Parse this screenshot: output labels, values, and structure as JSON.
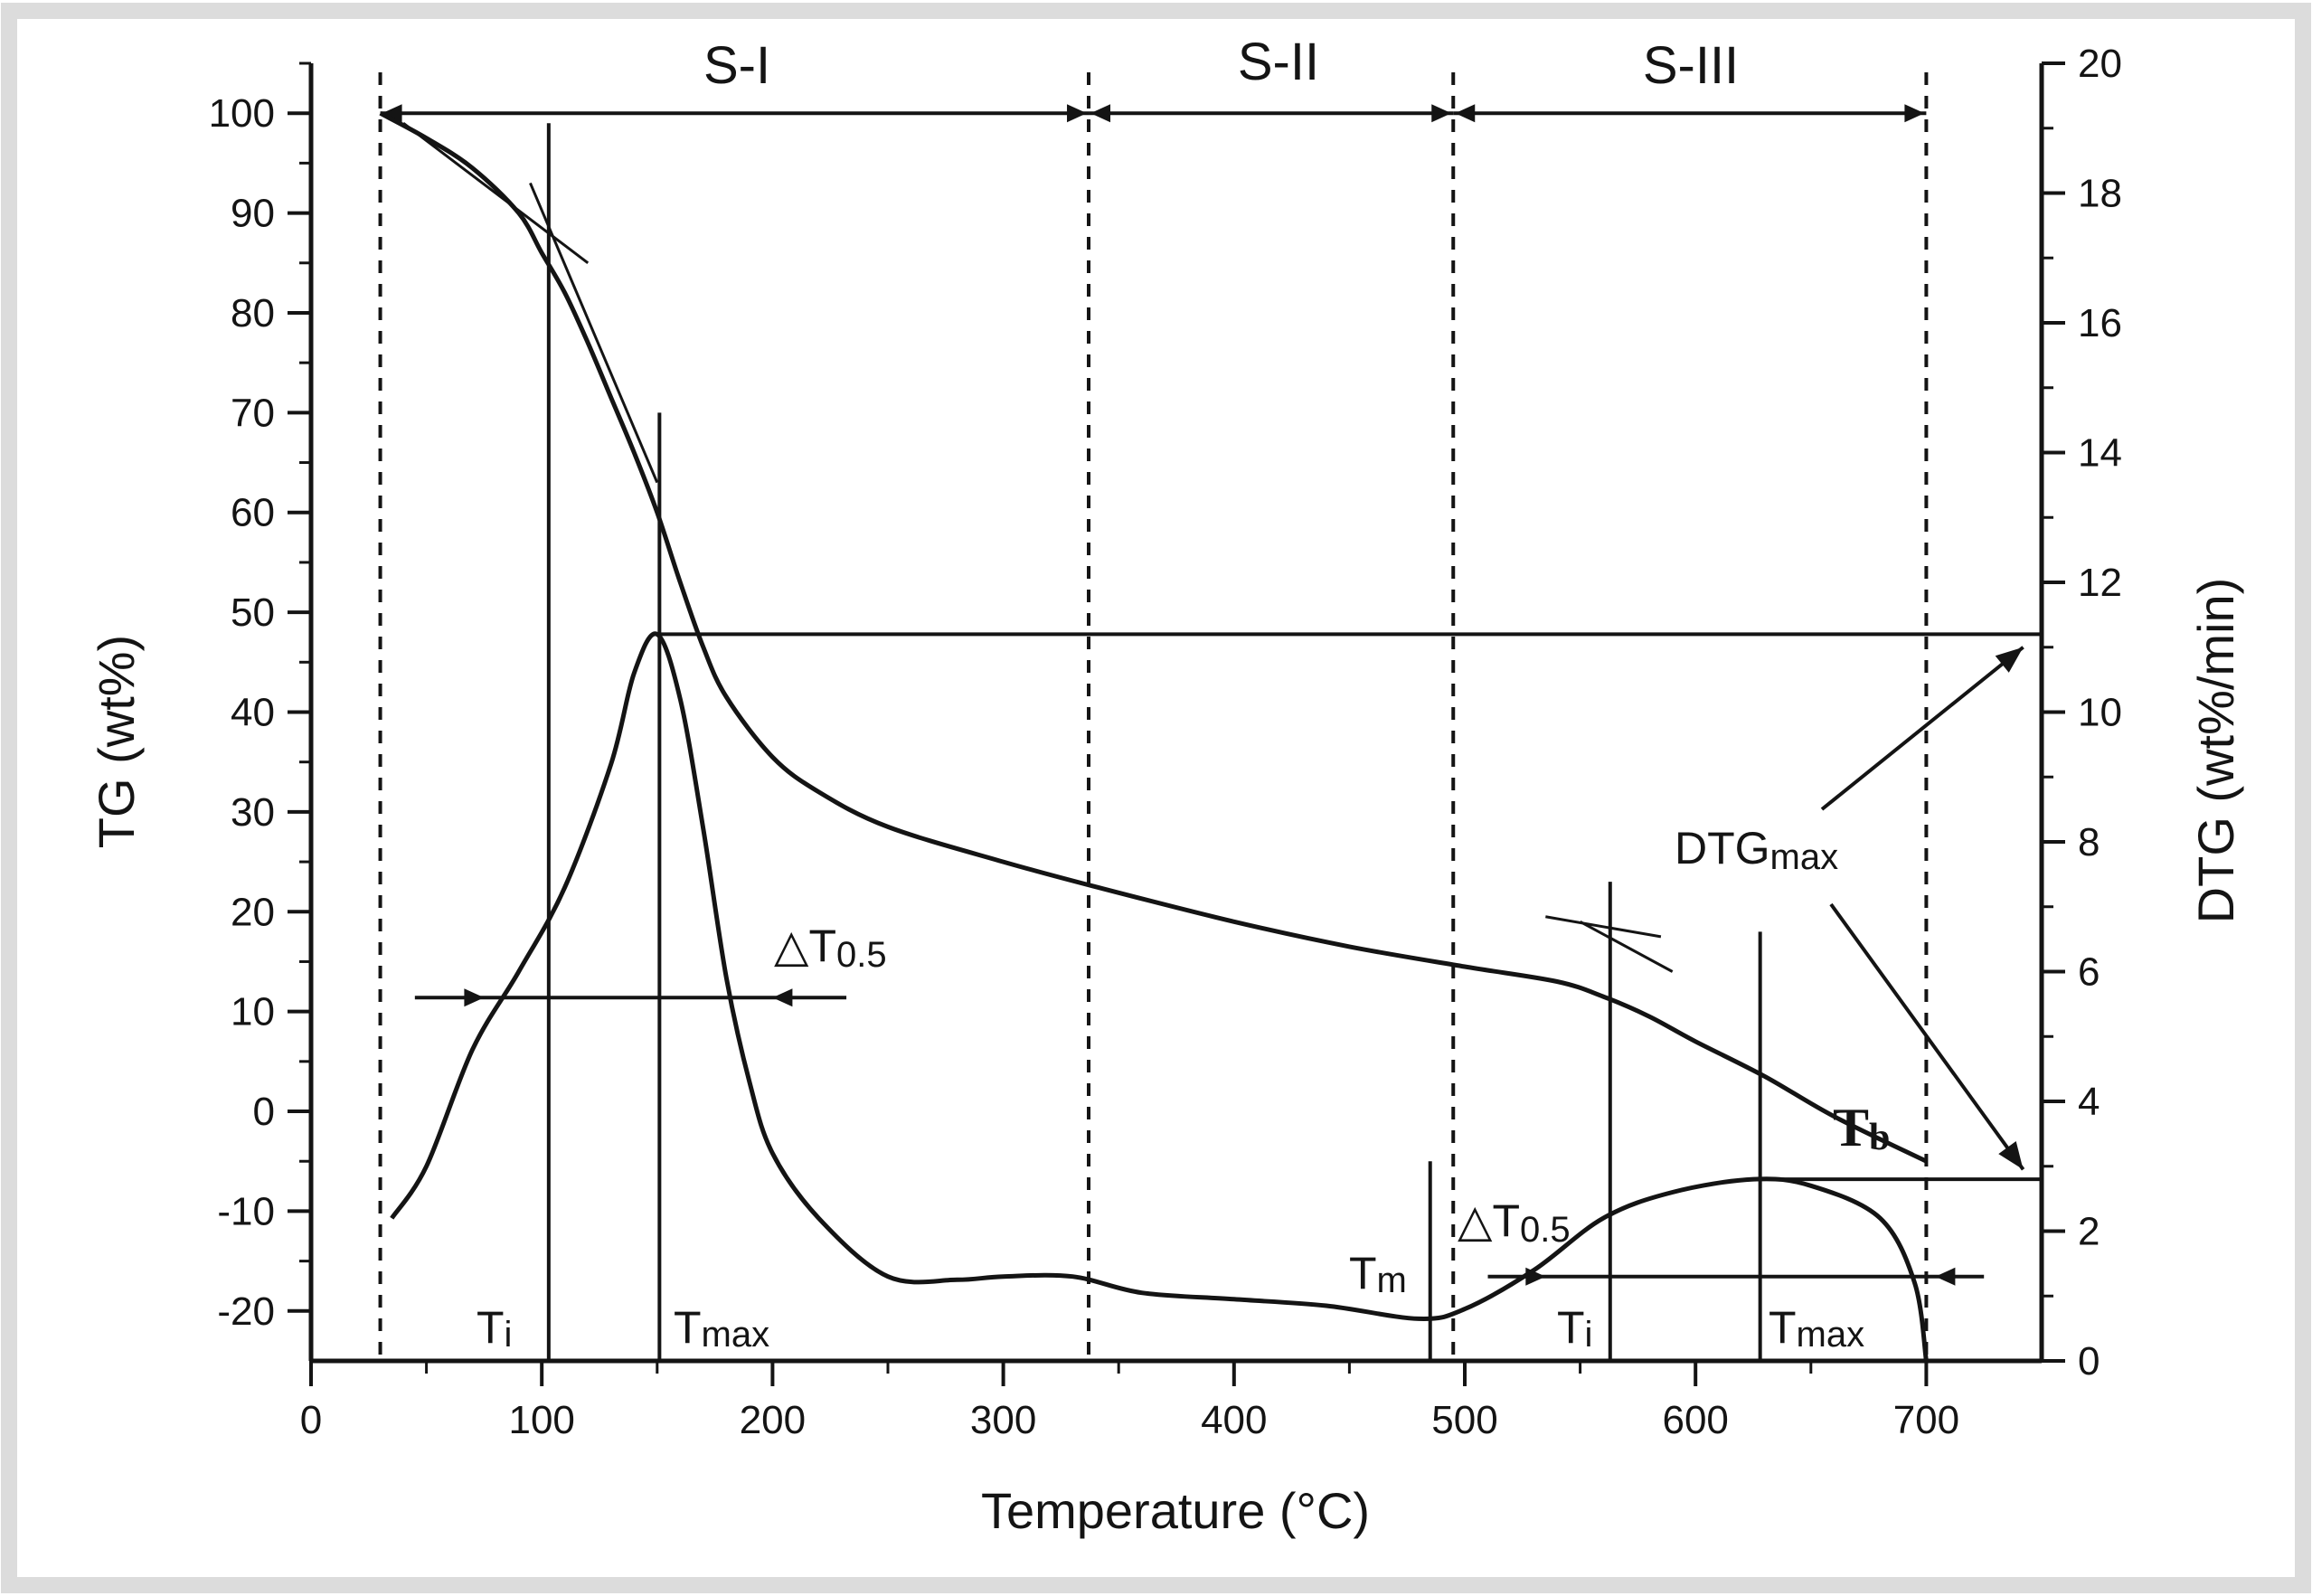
{
  "chart_data": {
    "type": "line",
    "title": "",
    "xlabel": "Temperature (°C)",
    "ylabel": "TG (wt%)",
    "y2label": "DTG (wt%/min)",
    "xlim": [
      0,
      750
    ],
    "ylim": [
      -25,
      105
    ],
    "y2lim": [
      0,
      20
    ],
    "xticks": [
      0,
      100,
      200,
      300,
      400,
      500,
      600,
      700
    ],
    "yticks": [
      -20,
      -10,
      0,
      10,
      20,
      30,
      40,
      50,
      60,
      70,
      80,
      90,
      100
    ],
    "y2ticks": [
      0,
      2,
      4,
      6,
      8,
      10,
      12,
      14,
      16,
      18,
      20
    ],
    "grid": false,
    "series": [
      {
        "name": "TG",
        "axis": "left",
        "x": [
          30,
          50,
          70,
          90,
          100,
          110,
          120,
          130,
          140,
          150,
          160,
          170,
          180,
          200,
          220,
          250,
          300,
          340,
          400,
          450,
          500,
          540,
          560,
          580,
          600,
          630,
          660,
          700
        ],
        "y": [
          100,
          97.5,
          94.5,
          90,
          86,
          82,
          77,
          71.5,
          66,
          60,
          53,
          46.5,
          41.5,
          35.5,
          32,
          28.5,
          25,
          22.5,
          19,
          16.5,
          14.5,
          13,
          11.5,
          9.5,
          7,
          3.5,
          -0.5,
          -5
        ]
      },
      {
        "name": "DTG",
        "axis": "right",
        "x": [
          35,
          50,
          70,
          90,
          110,
          130,
          140,
          150,
          160,
          170,
          180,
          190,
          200,
          220,
          250,
          280,
          300,
          330,
          360,
          400,
          440,
          480,
          500,
          530,
          560,
          590,
          625,
          650,
          680,
          695,
          700
        ],
        "y": [
          2.2,
          3.0,
          4.8,
          6.0,
          7.3,
          9.2,
          10.6,
          11.2,
          10.2,
          8.2,
          5.9,
          4.3,
          3.2,
          2.2,
          1.3,
          1.25,
          1.3,
          1.3,
          1.05,
          0.95,
          0.85,
          0.65,
          0.8,
          1.4,
          2.2,
          2.6,
          2.8,
          2.7,
          2.2,
          1.2,
          0.0
        ]
      }
    ],
    "region_labels": [
      "S-I",
      "S-II",
      "S-III"
    ],
    "region_bounds": [
      30,
      337,
      495,
      700
    ],
    "markers": {
      "Ti_1": 103,
      "Tmax_1": 151,
      "Tm": 485,
      "Ti_2": 563,
      "Tmax_2": 628,
      "Tb": 700,
      "DTGmax_1": 11.2,
      "DTGmax_2": 2.8,
      "half_width_1": [
        75,
        200
      ],
      "half_width_2": [
        535,
        700
      ]
    },
    "annotations": {
      "ti": "T",
      "ti_sub": "i",
      "tmax": "T",
      "tmax_sub": "max",
      "tm": "T",
      "tm_sub": "m",
      "delta_t": "△T",
      "delta_t_sub": "0.5",
      "dtgmax": "DTG",
      "dtgmax_sub": "max",
      "tb": "T",
      "tb_sub": "b"
    },
    "colors": {
      "line": "#141414",
      "background": "#ffffff",
      "frame": "#dcdcdc"
    }
  }
}
